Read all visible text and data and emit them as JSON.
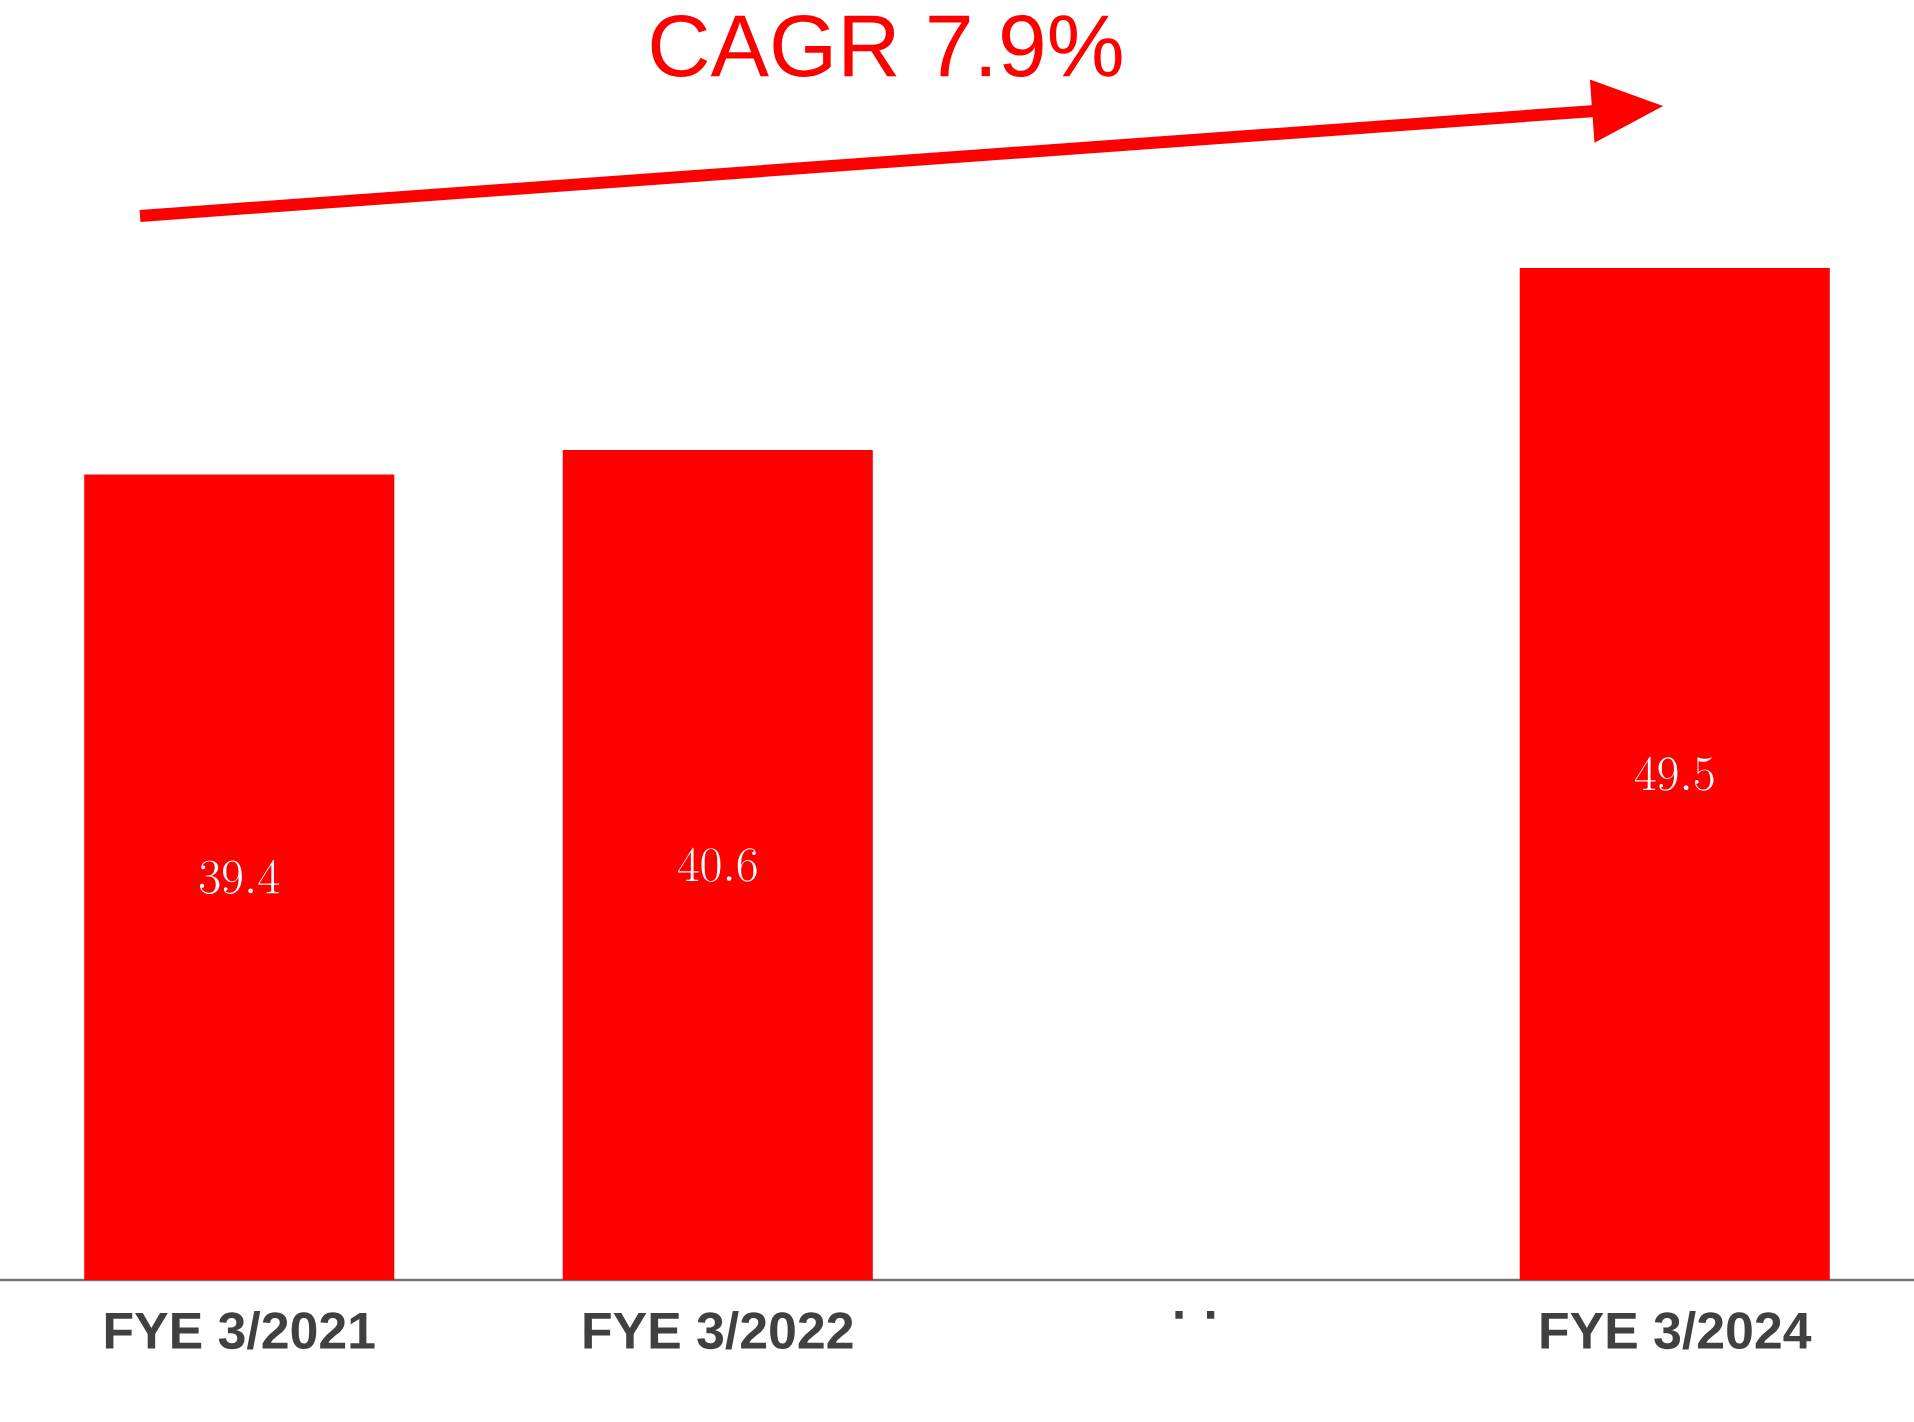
{
  "chart_data": {
    "type": "bar",
    "title": "CAGR 7.9%",
    "categories": [
      "FYE 3/2021",
      "FYE 3/2022",
      "· ·",
      "FYE 3/2024"
    ],
    "values": [
      39.4,
      40.6,
      null,
      49.5
    ],
    "color": "#ff0000",
    "data_labels": true
  }
}
